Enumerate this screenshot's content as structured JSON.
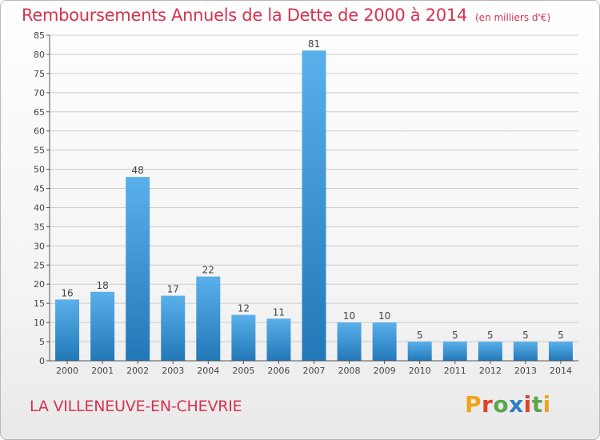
{
  "header": {
    "title": "Remboursements Annuels de la Dette de 2000 à 2014",
    "unit": "(en milliers d'€)"
  },
  "footer": {
    "city": "LA VILLENEUVE-EN-CHEVRIE",
    "logo": "Proxiti",
    "logo_colors": [
      "#f2a31b",
      "#e2402b",
      "#5aa64a",
      "#2f7fc1",
      "#e2402b",
      "#5aa64a",
      "#f2a31b"
    ]
  },
  "colors": {
    "bar_light": "#5ab0ea",
    "bar_dark": "#2277b8",
    "grid": "#cccccc",
    "title": "#d8324f"
  },
  "chart_data": {
    "type": "bar",
    "categories": [
      "2000",
      "2001",
      "2002",
      "2003",
      "2004",
      "2005",
      "2006",
      "2007",
      "2008",
      "2009",
      "2010",
      "2011",
      "2012",
      "2013",
      "2014"
    ],
    "values": [
      16,
      18,
      48,
      17,
      22,
      12,
      11,
      81,
      10,
      10,
      5,
      5,
      5,
      5,
      5
    ],
    "title": "Remboursements Annuels de la Dette de 2000 à 2014",
    "xlabel": "",
    "ylabel": "",
    "ylim": [
      0,
      85
    ],
    "yticks": [
      0,
      5,
      10,
      15,
      20,
      25,
      30,
      35,
      40,
      45,
      50,
      55,
      60,
      65,
      70,
      75,
      80,
      85
    ],
    "grid": true,
    "legend": "none"
  }
}
